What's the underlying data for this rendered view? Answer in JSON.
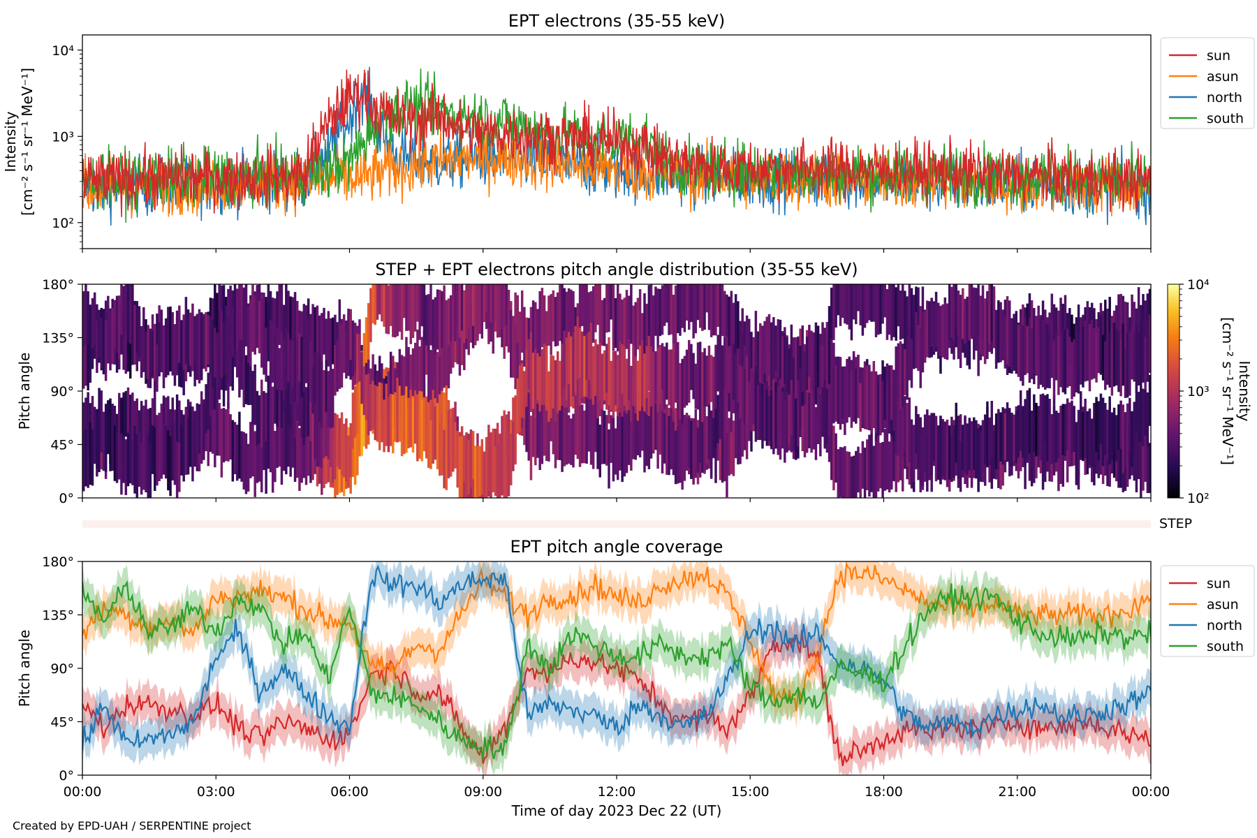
{
  "footer": "Created by EPD-UAH / SERPENTINE project",
  "xaxis": {
    "label": "Time of day 2023 Dec 22 (UT)",
    "ticks": [
      "00:00",
      "03:00",
      "06:00",
      "09:00",
      "12:00",
      "15:00",
      "18:00",
      "21:00",
      "00:00"
    ],
    "range_hours": [
      0,
      24
    ]
  },
  "colors": {
    "sun": "#d62728",
    "asun": "#ff7f0e",
    "north": "#1f77b4",
    "south": "#2ca02c"
  },
  "chart_data": [
    {
      "type": "line",
      "title": "EPT electrons (35-55 keV)",
      "ylabel": [
        "Intensity",
        "[cm⁻² s⁻¹ sr⁻¹ MeV⁻¹]"
      ],
      "yscale": "log",
      "ylim": [
        50,
        15000
      ],
      "yticks": [
        "10²",
        "10³",
        "10⁴"
      ],
      "legend_position": "outside right",
      "x_hours": [
        0,
        1,
        2,
        3,
        4,
        5,
        5.5,
        6,
        6.3,
        6.6,
        7,
        7.5,
        8,
        8.5,
        9,
        9.5,
        10,
        10.5,
        11,
        11.5,
        12,
        12.5,
        13,
        13.5,
        14,
        15,
        16,
        17,
        18,
        19,
        20,
        21,
        22,
        23,
        24
      ],
      "series": [
        {
          "name": "sun",
          "values": [
            300,
            320,
            330,
            330,
            330,
            350,
            1300,
            2800,
            3200,
            2000,
            1600,
            1500,
            1800,
            1200,
            1100,
            1100,
            1050,
            1000,
            950,
            900,
            850,
            760,
            600,
            500,
            450,
            420,
            430,
            420,
            410,
            400,
            380,
            360,
            340,
            320,
            300
          ]
        },
        {
          "name": "asun",
          "values": [
            250,
            260,
            270,
            280,
            300,
            300,
            310,
            320,
            330,
            370,
            420,
            460,
            500,
            560,
            560,
            560,
            530,
            500,
            470,
            450,
            420,
            390,
            370,
            350,
            340,
            320,
            320,
            310,
            310,
            300,
            290,
            280,
            280,
            270,
            260
          ]
        },
        {
          "name": "north",
          "values": [
            250,
            260,
            270,
            280,
            300,
            310,
            600,
            1500,
            3500,
            1200,
            600,
            520,
            500,
            540,
            560,
            560,
            540,
            500,
            460,
            430,
            400,
            380,
            360,
            340,
            330,
            320,
            320,
            310,
            300,
            290,
            280,
            280,
            270,
            260,
            250
          ]
        },
        {
          "name": "south",
          "values": [
            300,
            320,
            330,
            340,
            350,
            360,
            400,
            500,
            800,
            1500,
            2000,
            2200,
            2000,
            1700,
            1600,
            1500,
            1300,
            1100,
            1000,
            950,
            900,
            1100,
            500,
            430,
            410,
            400,
            390,
            380,
            380,
            370,
            360,
            340,
            330,
            320,
            300
          ]
        }
      ]
    },
    {
      "type": "heatmap",
      "title": "STEP + EPT electrons pitch angle distribution (35-55 keV)",
      "ylabel": "Pitch angle",
      "yticks": [
        "0°",
        "45°",
        "90°",
        "135°",
        "180°"
      ],
      "ylim": [
        0,
        180
      ],
      "colorbar": {
        "label": [
          "Intensity",
          "[cm⁻² s⁻¹ sr⁻¹ MeV⁻¹]"
        ],
        "scale": "log",
        "range": [
          100,
          10000
        ],
        "ticks": [
          "10²",
          "10³",
          "10⁴"
        ],
        "colormap": "inferno"
      },
      "step_label": "STEP",
      "note": "pitch-angle coverage of each telescope filled with its intensity"
    },
    {
      "type": "area",
      "title": "EPT pitch angle coverage",
      "ylabel": "Pitch angle",
      "yticks": [
        "0°",
        "45°",
        "90°",
        "135°",
        "180°"
      ],
      "ylim": [
        0,
        180
      ],
      "legend_position": "outside right",
      "x_hours": [
        0,
        0.5,
        1,
        1.5,
        2,
        2.5,
        3,
        3.5,
        4,
        4.5,
        5,
        5.5,
        6,
        6.5,
        7,
        7.5,
        8,
        8.5,
        9,
        9.5,
        10,
        10.5,
        11,
        11.5,
        12,
        12.5,
        13,
        13.5,
        14,
        14.5,
        15,
        15.5,
        16,
        16.5,
        17,
        17.5,
        18,
        18.5,
        19,
        19.5,
        20,
        20.5,
        21,
        21.5,
        22,
        22.5,
        23,
        23.5,
        24
      ],
      "band_halfwidth_deg": 15,
      "series": [
        {
          "name": "sun",
          "values": [
            60,
            40,
            60,
            60,
            55,
            50,
            60,
            40,
            30,
            45,
            40,
            30,
            35,
            85,
            90,
            70,
            70,
            40,
            15,
            40,
            90,
            85,
            100,
            95,
            90,
            80,
            60,
            45,
            50,
            40,
            65,
            110,
            115,
            100,
            15,
            20,
            30,
            40,
            35,
            40,
            40,
            40,
            45,
            40,
            40,
            45,
            40,
            35,
            30
          ]
        },
        {
          "name": "asun",
          "values": [
            120,
            140,
            135,
            125,
            130,
            120,
            150,
            150,
            155,
            150,
            140,
            130,
            130,
            90,
            90,
            110,
            105,
            135,
            165,
            150,
            135,
            150,
            150,
            160,
            150,
            145,
            160,
            165,
            170,
            150,
            115,
            70,
            60,
            100,
            170,
            170,
            165,
            155,
            145,
            140,
            140,
            145,
            135,
            135,
            135,
            135,
            135,
            140,
            150
          ]
        },
        {
          "name": "north",
          "values": [
            25,
            60,
            25,
            30,
            35,
            45,
            100,
            120,
            70,
            90,
            70,
            50,
            40,
            170,
            160,
            160,
            145,
            160,
            165,
            165,
            50,
            60,
            55,
            50,
            40,
            60,
            50,
            40,
            50,
            80,
            120,
            125,
            110,
            120,
            95,
            90,
            80,
            50,
            40,
            45,
            40,
            50,
            55,
            60,
            50,
            50,
            55,
            60,
            70
          ]
        },
        {
          "name": "south",
          "values": [
            155,
            130,
            160,
            120,
            125,
            140,
            120,
            150,
            140,
            110,
            120,
            80,
            140,
            70,
            65,
            60,
            45,
            30,
            25,
            20,
            110,
            90,
            120,
            110,
            100,
            100,
            110,
            100,
            100,
            110,
            75,
            60,
            70,
            60,
            90,
            85,
            80,
            110,
            140,
            150,
            150,
            150,
            130,
            120,
            115,
            115,
            120,
            115,
            120
          ]
        }
      ]
    }
  ]
}
